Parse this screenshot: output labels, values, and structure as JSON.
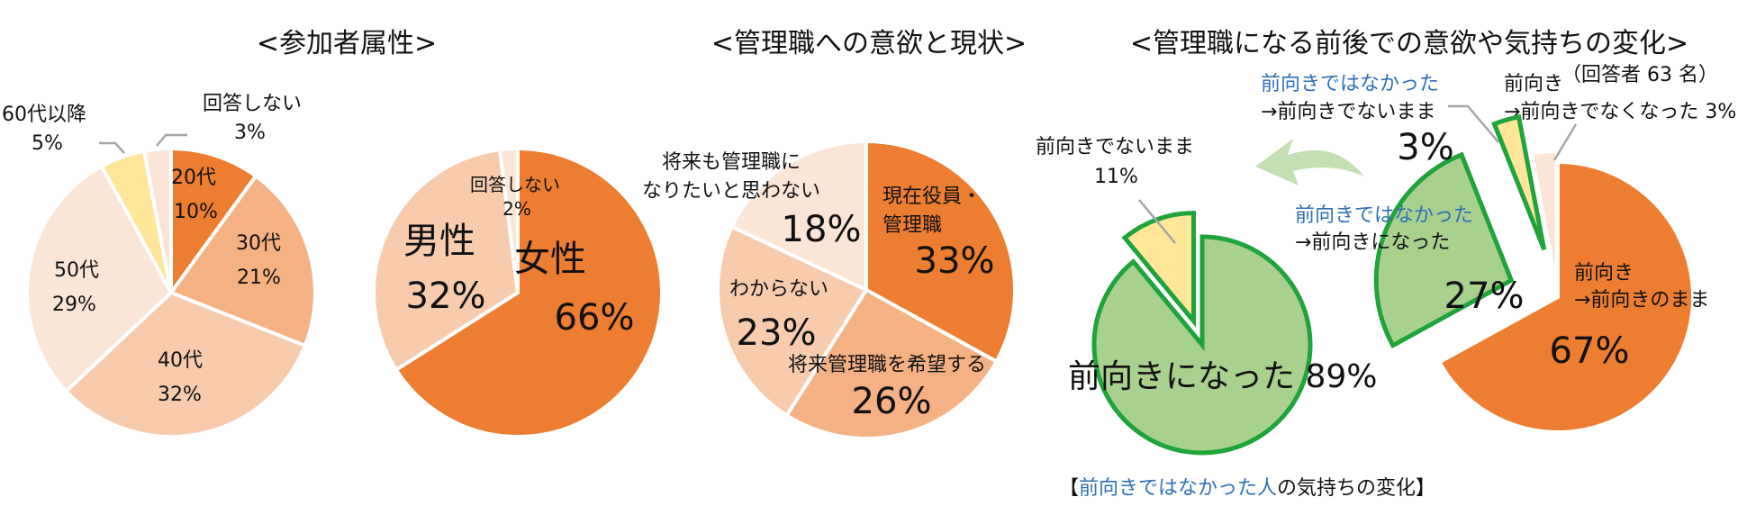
{
  "colors": {
    "dark_orange": "#ed7d31",
    "mid_orange": "#f4b183",
    "light_orange": "#f8cbad",
    "pale_orange": "#fbe5d6",
    "yellow": "#ffe699",
    "green": "#a9d18e",
    "green_stroke": "#1fa33a",
    "label_blue": "#2e6fb6"
  },
  "titles": {
    "chart1": "<参加者属性>",
    "chart3": "<管理職への意欲と現状>",
    "chart4": "<管理職になる前後での意欲や気持ちの変化>",
    "respondents": "（回答者 63 名）"
  },
  "chart_data": [
    {
      "type": "pie",
      "title": "<参加者属性>",
      "categories": [
        "20代",
        "30代",
        "40代",
        "50代",
        "60代以降",
        "回答しない"
      ],
      "values": [
        10,
        21,
        32,
        29,
        5,
        3
      ],
      "unit": "%"
    },
    {
      "type": "pie",
      "title": "",
      "categories": [
        "女性",
        "男性",
        "回答しない"
      ],
      "values": [
        66,
        32,
        2
      ],
      "unit": "%"
    },
    {
      "type": "pie",
      "title": "<管理職への意欲と現状>",
      "categories": [
        "現在役員・管理職",
        "将来管理職を希望する",
        "わからない",
        "将来も管理職になりたいと思わない"
      ],
      "values": [
        33,
        26,
        23,
        18
      ],
      "unit": "%"
    },
    {
      "type": "pie",
      "title": "<管理職になる前後での意欲や気持ちの変化>",
      "categories": [
        "前向き→前向きのまま",
        "前向きではなかった→前向きになった",
        "前向きではなかった→前向きでないまま",
        "前向き→前向きでなくなった"
      ],
      "values": [
        67,
        27,
        3,
        3
      ],
      "unit": "%"
    },
    {
      "type": "pie",
      "title": "【前向きではなかった人の気持ちの変化】",
      "categories": [
        "前向きになった",
        "前向きでないまま"
      ],
      "values": [
        89,
        11
      ],
      "unit": "%"
    }
  ],
  "labels": {
    "c1": {
      "s20_name": "20代",
      "s20_pct": "10%",
      "s30_name": "30代",
      "s30_pct": "21%",
      "s40_name": "40代",
      "s40_pct": "32%",
      "s50_name": "50代",
      "s50_pct": "29%",
      "s60_name": "60代以降",
      "s60_pct": "5%",
      "sna_name": "回答しない",
      "sna_pct": "3%"
    },
    "c2": {
      "female_name": "女性",
      "female_pct": "66%",
      "male_name": "男性",
      "male_pct": "32%",
      "na_name": "回答しない",
      "na_pct": "2%"
    },
    "c3": {
      "current_line1": "現在役員・",
      "current_line2": "管理職",
      "current_pct": "33%",
      "hope_name": "将来管理職を希望する",
      "hope_pct": "26%",
      "unknown_name": "わからない",
      "unknown_pct": "23%",
      "never_line1": "将来も管理職に",
      "never_line2": "なりたいと思わない",
      "never_pct": "18%"
    },
    "c4": {
      "keep_line1": "前向き",
      "keep_line2": "→前向きのまま",
      "keep_pct": "67%",
      "became_line1": "前向きではなかった",
      "became_line2": "→前向きになった",
      "became_pct": "27%",
      "stay_line1": "前向きではなかった",
      "stay_line2": "→前向きでないまま",
      "stay_pct": "3%",
      "lost_line1": "前向き",
      "lost_line2": "→前向きでなくなった 3%"
    },
    "c5": {
      "became_name": "前向きになった 89%",
      "stay_name": "前向きでないまま",
      "stay_pct": "11%",
      "caption_open": "【",
      "caption_blue": "前向きではなかった人",
      "caption_rest": "の気持ちの変化】"
    }
  }
}
